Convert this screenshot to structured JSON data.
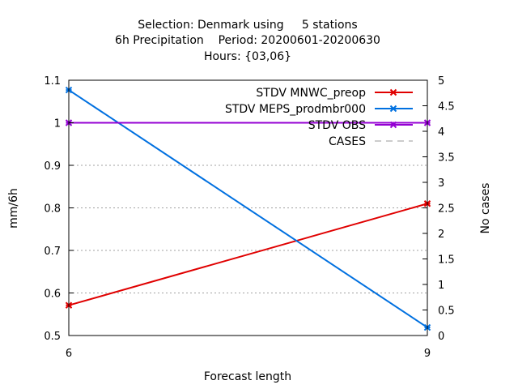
{
  "chart_data": {
    "type": "line",
    "title_lines": [
      "Selection: Denmark using     5 stations",
      "6h Precipitation    Period: 20200601-20200630",
      "Hours: {03,06}"
    ],
    "xlabel": "Forecast length",
    "ylabel": "mm/6h",
    "y2label": "No cases",
    "x": [
      6,
      9
    ],
    "x_ticks": [
      "6",
      "9"
    ],
    "xlim": [
      6,
      9
    ],
    "ylim": [
      0.5,
      1.1
    ],
    "y_ticks": [
      "0.5",
      "0.6",
      "0.7",
      "0.8",
      "0.9",
      "1",
      "1.1"
    ],
    "y2lim": [
      0,
      5
    ],
    "y2_ticks": [
      "0",
      "0.5",
      "1",
      "1.5",
      "2",
      "2.5",
      "3",
      "3.5",
      "4",
      "4.5",
      "5"
    ],
    "grid": true,
    "legend_position": "top-right",
    "series": [
      {
        "name": "STDV MNWC_preop",
        "values": [
          0.571,
          0.81
        ],
        "color": "#e00000",
        "axis": "y1",
        "style": "solid",
        "marker": "x"
      },
      {
        "name": "STDV MEPS_prodmbr000",
        "values": [
          1.077,
          0.519
        ],
        "color": "#0070e0",
        "axis": "y1",
        "style": "solid",
        "marker": "x"
      },
      {
        "name": "STDV OBS",
        "values": [
          1.0,
          1.0
        ],
        "color": "#9400d3",
        "axis": "y1",
        "style": "solid",
        "marker": "x"
      },
      {
        "name": "CASES",
        "values": [
          5,
          5
        ],
        "color": "#9a9a9a",
        "axis": "y2",
        "style": "dashed",
        "marker": ""
      }
    ]
  }
}
